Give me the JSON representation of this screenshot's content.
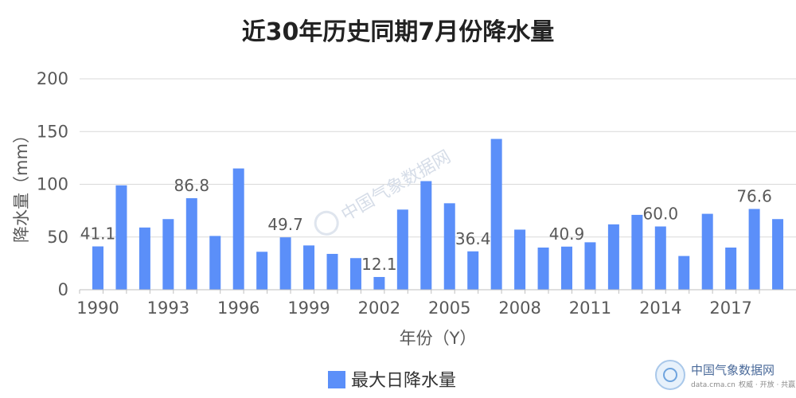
{
  "chart_data": {
    "type": "bar",
    "title": "近30年历史同期7月份降水量",
    "xlabel": "年份（Y）",
    "ylabel": "降水量（mm）",
    "ylim": [
      0,
      200
    ],
    "yticks": [
      0,
      50,
      100,
      150,
      200
    ],
    "grid": true,
    "legend_position": "bottom",
    "bar_color": "#5b8ff9",
    "categories": [
      "1990",
      "1991",
      "1992",
      "1993",
      "1994",
      "1995",
      "1996",
      "1997",
      "1998",
      "1999",
      "2000",
      "2001",
      "2002",
      "2003",
      "2004",
      "2005",
      "2006",
      "2007",
      "2008",
      "2009",
      "2010",
      "2011",
      "2012",
      "2013",
      "2014",
      "2015",
      "2016",
      "2017",
      "2018",
      "2019"
    ],
    "tick_labels": [
      "1990",
      "1993",
      "1996",
      "1999",
      "2002",
      "2005",
      "2008",
      "2011",
      "2014",
      "2017"
    ],
    "series": [
      {
        "name": "最大日降水量",
        "values": [
          41.1,
          99,
          59,
          67,
          86.8,
          51,
          115,
          36,
          49.7,
          42,
          34,
          30,
          12.1,
          76,
          103,
          82,
          36.4,
          143,
          57,
          40,
          40.9,
          45,
          62,
          71,
          60.0,
          32,
          72,
          40,
          76.6,
          67
        ]
      }
    ],
    "data_labels": [
      {
        "category": "1990",
        "text": "41.1"
      },
      {
        "category": "1994",
        "text": "86.8"
      },
      {
        "category": "1998",
        "text": "49.7"
      },
      {
        "category": "2002",
        "text": "12.1"
      },
      {
        "category": "2006",
        "text": "36.4"
      },
      {
        "category": "2010",
        "text": "40.9"
      },
      {
        "category": "2014",
        "text": "60.0"
      },
      {
        "category": "2018",
        "text": "76.6"
      }
    ]
  },
  "watermark": {
    "center_text": "中国气象数据网",
    "brand_name": "中国气象数据网",
    "brand_url": "data.cma.cn",
    "brand_slogan": "权威 · 开放 · 共赢"
  }
}
